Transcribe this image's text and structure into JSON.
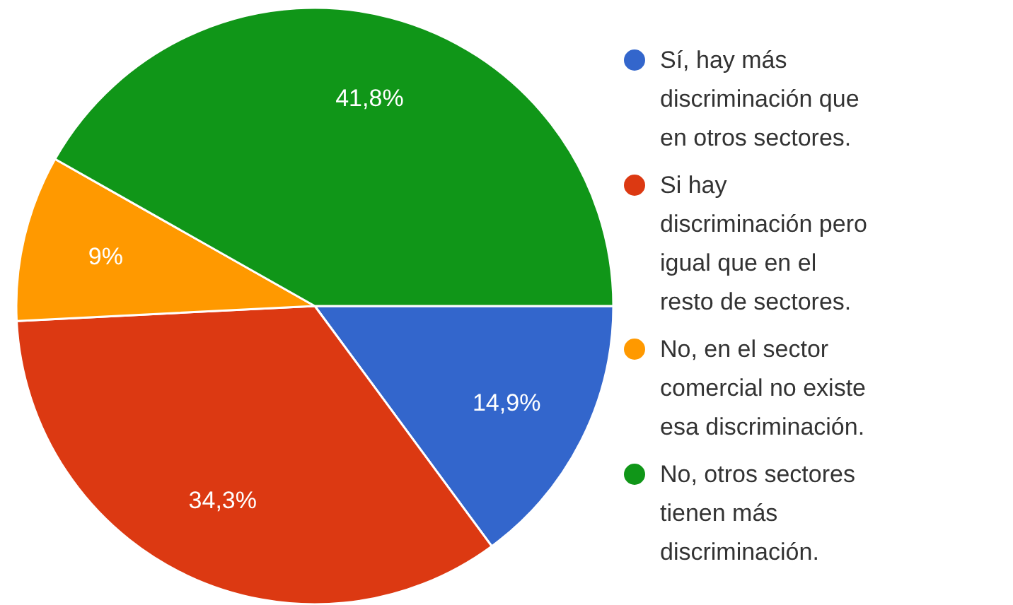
{
  "chart_data": {
    "type": "pie",
    "categories": [
      "Sí, hay más discriminación que en otros sectores.",
      "Si hay discriminación pero igual que en el resto de sectores.",
      "No, en el sector comercial no existe esa discriminación.",
      "No, otros sectores tienen más discriminación."
    ],
    "values": [
      14.9,
      34.3,
      9,
      41.8
    ],
    "value_labels": [
      "14,9%",
      "34,3%",
      "9%",
      "41,8%"
    ],
    "colors": [
      "#3366cc",
      "#dc3912",
      "#ff9900",
      "#109618"
    ],
    "legend": "right"
  }
}
